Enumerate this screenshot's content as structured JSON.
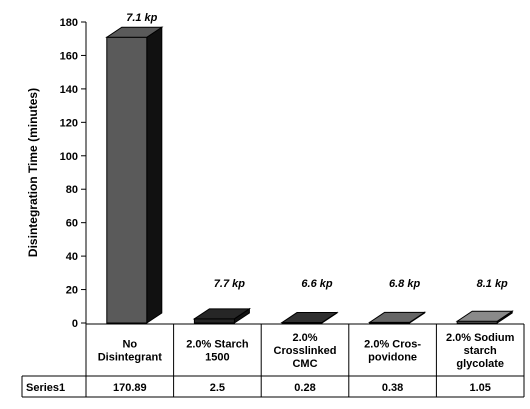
{
  "chart_data": {
    "type": "bar",
    "ylabel": "Disintegration Time (minutes)",
    "ylim": [
      0,
      180
    ],
    "yticks": [
      0,
      20,
      40,
      60,
      80,
      100,
      120,
      140,
      160,
      180
    ],
    "categories": [
      [
        "No",
        "Disintegrant"
      ],
      [
        "2.0% Starch",
        "1500"
      ],
      [
        "2.0%",
        "Crosslinked",
        "CMC"
      ],
      [
        "2.0% Cros-",
        "povidone"
      ],
      [
        "2.0% Sodium",
        "starch",
        "glycolate"
      ]
    ],
    "series": [
      {
        "name": "Series1",
        "values": [
          170.89,
          2.5,
          0.28,
          0.38,
          1.05
        ]
      }
    ],
    "bar_annotations": [
      "7.1 kp",
      "7.7 kp",
      "6.6 kp",
      "6.8 kp",
      "8.1 kp"
    ],
    "table_values": [
      "170.89",
      "2.5",
      "0.28",
      "0.38",
      "1.05"
    ],
    "bar_colors": [
      "#5a5a5a",
      "#262626",
      "#303030",
      "#666666",
      "#8a8a8a"
    ],
    "grid": false,
    "legend": "none",
    "style": "3d-bar with data table"
  }
}
